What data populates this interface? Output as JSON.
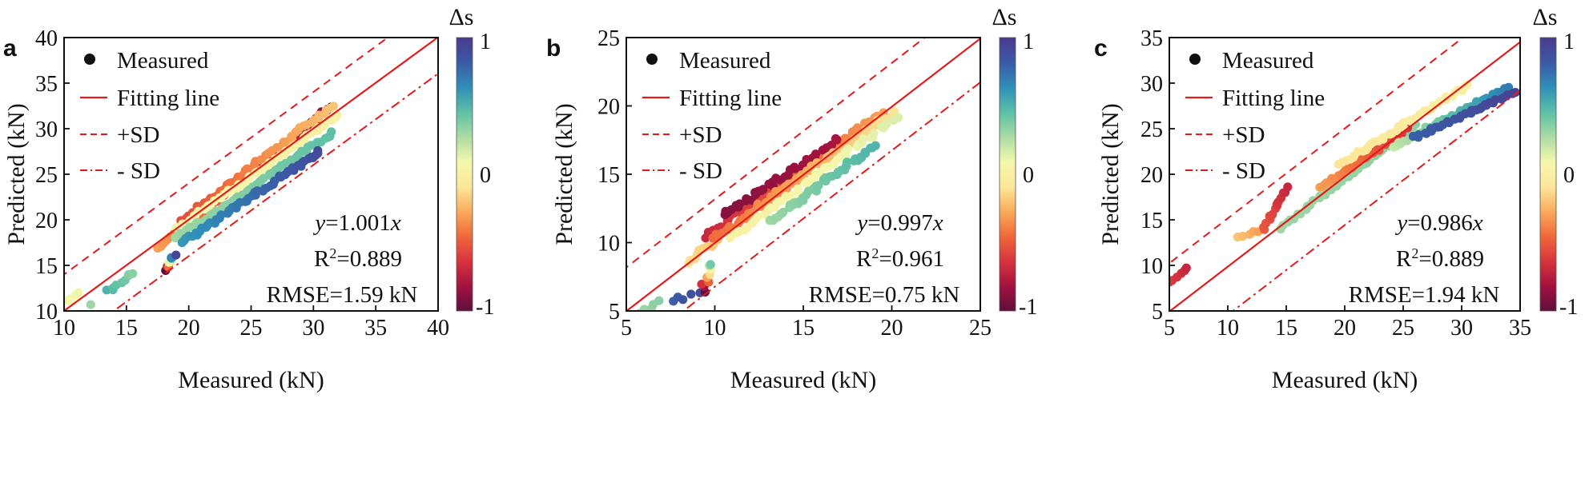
{
  "figure": {
    "colorbar_colors": [
      "#5e0f3f",
      "#a3123f",
      "#d8333d",
      "#f0683a",
      "#f9ab5b",
      "#fde79a",
      "#f4f8ac",
      "#abdba3",
      "#5cc0a6",
      "#2f8fb8",
      "#3b5aa6",
      "#4b3a8e"
    ],
    "line_color": "#e31a1c",
    "legend": {
      "measured": "Measured",
      "fitting": "Fitting line",
      "plus_sd": "+SD",
      "minus_sd": "- SD"
    }
  },
  "chart_data": [
    {
      "type": "scatter",
      "panel": "a",
      "xlabel": "Measured (kN)",
      "ylabel": "Predicted (kN)",
      "xlim": [
        10,
        40
      ],
      "ylim": [
        10,
        40
      ],
      "xticks": [
        10,
        15,
        20,
        25,
        30,
        35,
        40
      ],
      "yticks": [
        10,
        15,
        20,
        25,
        30,
        35,
        40
      ],
      "fit_slope": 1.001,
      "sd": 4.0,
      "equation_var": "y",
      "equation_rest": "=1.001",
      "equation_x": "x",
      "r2_prefix": "R",
      "r2_sup": "2",
      "r2_rest": "=0.889",
      "rmse_text": "RMSE=1.59 kN",
      "colorbar": {
        "title": "Δs",
        "max_label": "1",
        "mid_label": "0",
        "min_label": "-1"
      },
      "point_clusters": [
        {
          "x0": 10.2,
          "x1": 11.0,
          "y0": 11.0,
          "y1": 11.9,
          "ds0": 0.05,
          "ds1": 0.1,
          "n": 5
        },
        {
          "x0": 12.2,
          "x1": 12.2,
          "y0": 10.8,
          "y1": 10.8,
          "ds0": 0.3,
          "ds1": 0.3,
          "n": 1
        },
        {
          "x0": 13.5,
          "x1": 15.5,
          "y0": 12.2,
          "y1": 14.2,
          "ds0": 0.5,
          "ds1": 0.35,
          "n": 9
        },
        {
          "x0": 18.0,
          "x1": 18.8,
          "y0": 14.5,
          "y1": 16.2,
          "ds0": -1.0,
          "ds1": 0.95,
          "n": 8
        },
        {
          "x0": 17.5,
          "x1": 31.5,
          "y0": 16.8,
          "y1": 32.5,
          "ds0": -0.3,
          "ds1": -0.9,
          "n": 60
        },
        {
          "x0": 19.5,
          "x1": 31.5,
          "y0": 20.0,
          "y1": 32.5,
          "ds0": -0.55,
          "ds1": -0.2,
          "n": 55
        },
        {
          "x0": 19.0,
          "x1": 32.0,
          "y0": 19.0,
          "y1": 31.5,
          "ds0": 0.1,
          "ds1": 0.0,
          "n": 55
        },
        {
          "x0": 19.0,
          "x1": 31.5,
          "y0": 18.0,
          "y1": 29.5,
          "ds0": 0.3,
          "ds1": 0.45,
          "n": 55
        },
        {
          "x0": 19.5,
          "x1": 30.5,
          "y0": 17.5,
          "y1": 27.5,
          "ds0": 0.6,
          "ds1": 0.9,
          "n": 55
        }
      ]
    },
    {
      "type": "scatter",
      "panel": "b",
      "xlabel": "Measured (kN)",
      "ylabel": "Predicted (kN)",
      "xlim": [
        5,
        25
      ],
      "ylim": [
        5,
        25
      ],
      "xticks": [
        5,
        10,
        15,
        20,
        25
      ],
      "yticks": [
        5,
        10,
        15,
        20,
        25
      ],
      "fit_slope": 0.997,
      "sd": 3.2,
      "equation_var": "y",
      "equation_rest": "=0.997",
      "equation_x": "x",
      "r2_prefix": "R",
      "r2_sup": "2",
      "r2_rest": "=0.961",
      "rmse_text": "RMSE=0.75 kN",
      "colorbar": {
        "title": "Δs",
        "max_label": "1",
        "mid_label": "0",
        "min_label": "-1"
      },
      "point_clusters": [
        {
          "x0": 5.8,
          "x1": 6.9,
          "y0": 4.9,
          "y1": 5.6,
          "ds0": 0.3,
          "ds1": 0.35,
          "n": 5
        },
        {
          "x0": 7.5,
          "x1": 9.0,
          "y0": 5.7,
          "y1": 6.3,
          "ds0": 0.8,
          "ds1": 0.9,
          "n": 5
        },
        {
          "x0": 9.3,
          "x1": 9.8,
          "y0": 6.5,
          "y1": 8.4,
          "ds0": -1.0,
          "ds1": 0.4,
          "n": 9
        },
        {
          "x0": 8.5,
          "x1": 10.2,
          "y0": 8.6,
          "y1": 10.2,
          "ds0": -0.1,
          "ds1": -0.2,
          "n": 10
        },
        {
          "x0": 9.5,
          "x1": 19.5,
          "y0": 10.5,
          "y1": 19.5,
          "ds0": -0.7,
          "ds1": -0.3,
          "n": 60
        },
        {
          "x0": 10.5,
          "x1": 17.0,
          "y0": 12.0,
          "y1": 17.5,
          "ds0": -0.9,
          "ds1": -0.8,
          "n": 40
        },
        {
          "x0": 10.0,
          "x1": 20.0,
          "y0": 10.3,
          "y1": 19.5,
          "ds0": -0.45,
          "ds1": -0.1,
          "n": 60
        },
        {
          "x0": 11.0,
          "x1": 20.2,
          "y0": 10.5,
          "y1": 19.0,
          "ds0": 0.0,
          "ds1": 0.15,
          "n": 45
        },
        {
          "x0": 13.0,
          "x1": 19.0,
          "y0": 11.5,
          "y1": 17.0,
          "ds0": 0.3,
          "ds1": 0.5,
          "n": 45
        }
      ]
    },
    {
      "type": "scatter",
      "panel": "c",
      "xlabel": "Measured (kN)",
      "ylabel": "Predicted (kN)",
      "xlim": [
        5,
        35
      ],
      "ylim": [
        5,
        35
      ],
      "xticks": [
        5,
        10,
        15,
        20,
        25,
        30,
        35
      ],
      "yticks": [
        5,
        10,
        15,
        20,
        25,
        30,
        35
      ],
      "fit_slope": 0.986,
      "sd": 5.3,
      "equation_var": "y",
      "equation_rest": "=0.986",
      "equation_x": "x",
      "r2_prefix": "R",
      "r2_sup": "2",
      "r2_rest": "=0.889",
      "rmse_text": "RMSE=1.94 kN",
      "colorbar": {
        "title": "Δs",
        "max_label": "1",
        "mid_label": "0",
        "min_label": "-1"
      },
      "point_clusters": [
        {
          "x0": 5.0,
          "x1": 6.5,
          "y0": 8.1,
          "y1": 9.6,
          "ds0": -0.6,
          "ds1": -0.7,
          "n": 6
        },
        {
          "x0": 11.0,
          "x1": 12.5,
          "y0": 13.0,
          "y1": 13.8,
          "ds0": -0.2,
          "ds1": -0.3,
          "n": 5
        },
        {
          "x0": 13.0,
          "x1": 15.0,
          "y0": 14.0,
          "y1": 18.5,
          "ds0": -0.5,
          "ds1": -0.7,
          "n": 14
        },
        {
          "x0": 14.5,
          "x1": 26.0,
          "y0": 14.0,
          "y1": 25.5,
          "ds0": 0.3,
          "ds1": 0.35,
          "n": 40
        },
        {
          "x0": 18.0,
          "x1": 25.5,
          "y0": 18.5,
          "y1": 25.2,
          "ds0": -0.3,
          "ds1": -0.65,
          "n": 40
        },
        {
          "x0": 19.5,
          "x1": 30.5,
          "y0": 21.0,
          "y1": 29.8,
          "ds0": -0.1,
          "ds1": 0.0,
          "n": 40
        },
        {
          "x0": 24.0,
          "x1": 34.0,
          "y0": 23.0,
          "y1": 29.5,
          "ds0": 0.2,
          "ds1": 0.7,
          "n": 40
        },
        {
          "x0": 26.0,
          "x1": 34.5,
          "y0": 24.0,
          "y1": 29.0,
          "ds0": 0.8,
          "ds1": 0.95,
          "n": 35
        }
      ]
    }
  ]
}
